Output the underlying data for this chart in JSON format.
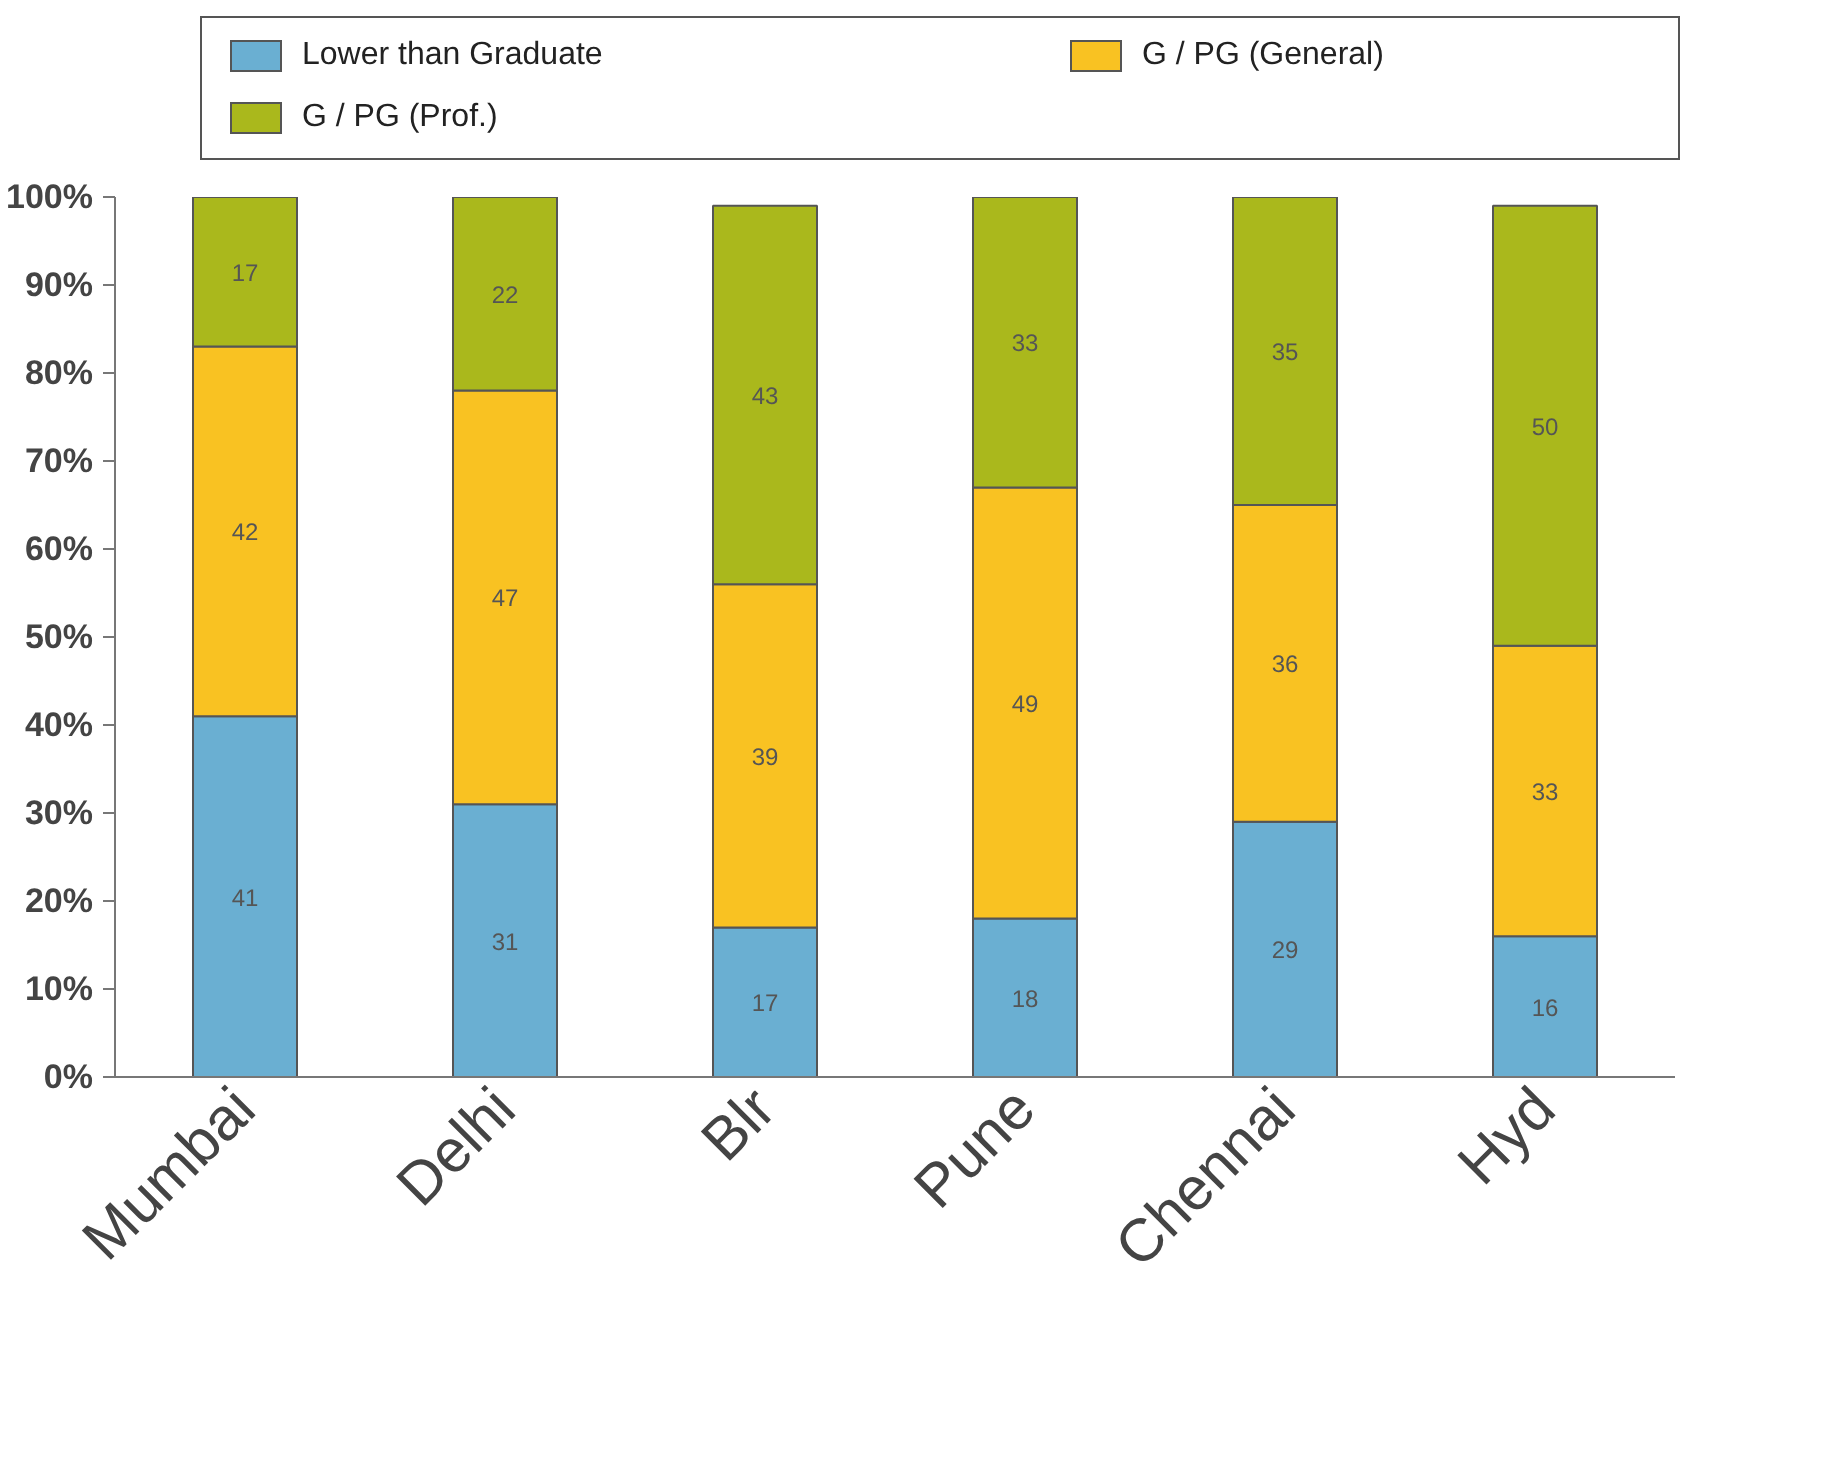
{
  "chart_data": {
    "type": "bar",
    "stacked": true,
    "categories": [
      "Mumbai",
      "Delhi",
      "Blr",
      "Pune",
      "Chennai",
      "Hyd"
    ],
    "series": [
      {
        "name": "Lower than Graduate",
        "color": "#6aafd2",
        "values": [
          41,
          31,
          17,
          18,
          29,
          16
        ]
      },
      {
        "name": "G / PG (General)",
        "color": "#f9c222",
        "values": [
          42,
          47,
          39,
          49,
          36,
          33
        ]
      },
      {
        "name": "G / PG (Prof.)",
        "color": "#aab81c",
        "values": [
          17,
          22,
          43,
          33,
          35,
          50
        ]
      }
    ],
    "ylim": [
      0,
      100
    ],
    "yticks": [
      {
        "value": 0,
        "label": "0%"
      },
      {
        "value": 10,
        "label": "10%"
      },
      {
        "value": 20,
        "label": "20%"
      },
      {
        "value": 30,
        "label": "30%"
      },
      {
        "value": 40,
        "label": "40%"
      },
      {
        "value": 50,
        "label": "50%"
      },
      {
        "value": 60,
        "label": "60%"
      },
      {
        "value": 70,
        "label": "70%"
      },
      {
        "value": 80,
        "label": "80%"
      },
      {
        "value": 90,
        "label": "90%"
      },
      {
        "value": 100,
        "label": "100%"
      }
    ],
    "data_labels": true,
    "grid": false,
    "legend": "top"
  }
}
